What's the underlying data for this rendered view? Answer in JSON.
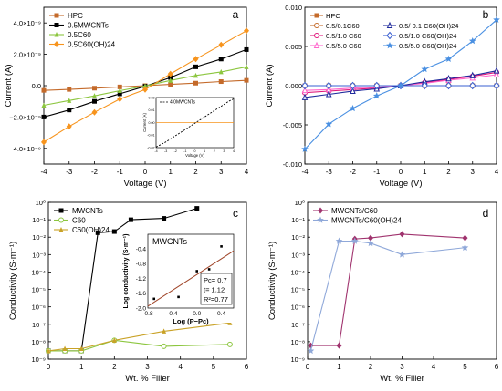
{
  "chart_data": [
    {
      "panel": "a",
      "type": "line",
      "xlabel": "Voltage (V)",
      "ylabel": "Current (A)",
      "xlim": [
        -4,
        4
      ],
      "ylim": [
        -5e-09,
        5e-09
      ],
      "x_ticks": [
        "-4",
        "-3",
        "-2",
        "-1",
        "0",
        "1",
        "2",
        "3",
        "4"
      ],
      "y_ticks": [
        {
          "v": 4e-09,
          "label": "4.0×10⁻⁹"
        },
        {
          "v": 2e-09,
          "label": "2.0×10⁻⁹"
        },
        {
          "v": 0,
          "label": "0.0"
        },
        {
          "v": -2e-09,
          "label": "−2.0×10⁻⁹"
        },
        {
          "v": -4e-09,
          "label": "−4.0×10⁻⁹"
        }
      ],
      "legend_position": "top-left",
      "series": [
        {
          "name": "HPC",
          "color": "#c46a2a",
          "marker": "square",
          "x": [
            -4,
            -3,
            -2,
            -1,
            0,
            1,
            2,
            3,
            4
          ],
          "y": [
            -3e-10,
            -2.4e-10,
            -1.6e-10,
            -8e-11,
            0,
            8e-11,
            1.6e-10,
            2.6e-10,
            3.4e-10
          ]
        },
        {
          "name": "0.5MWCNTs",
          "color": "#000000",
          "marker": "square",
          "x": [
            -4,
            -3,
            -2,
            -1,
            0,
            1,
            2,
            3,
            4
          ],
          "y": [
            -2e-09,
            -1.55e-09,
            -1e-09,
            -5.2e-10,
            -4e-11,
            5.2e-10,
            1.2e-09,
            1.7e-09,
            2.3e-09
          ]
        },
        {
          "name": "0.5C60",
          "color": "#8cc63f",
          "marker": "triangle",
          "x": [
            -4,
            -3,
            -2,
            -1,
            0,
            1,
            2,
            3,
            4
          ],
          "y": [
            -1.25e-09,
            -9.5e-10,
            -6.5e-10,
            -3.2e-10,
            -2e-11,
            3.3e-10,
            6.5e-10,
            8.8e-10,
            1.2e-09
          ]
        },
        {
          "name": "0.5C60(OH)24",
          "color": "#f7941d",
          "marker": "diamond",
          "x": [
            -4,
            -3,
            -2,
            -1,
            0,
            1,
            2,
            3,
            4
          ],
          "y": [
            -3.6e-09,
            -2.6e-09,
            -1.7e-09,
            -8.5e-10,
            -2.5e-10,
            7.5e-10,
            1.7e-09,
            2.6e-09,
            3.5e-09
          ]
        }
      ],
      "inset": {
        "legend": "4.0MWCNTs",
        "xlabel": "Voltage (V)",
        "ylabel": "Current (A)",
        "xlim": [
          -4,
          4
        ],
        "ylim": [
          -0.02,
          0.02
        ],
        "x_ticks": [
          "-4",
          "-3",
          "-2",
          "-1",
          "0",
          "1",
          "2",
          "3",
          "4"
        ],
        "y_ticks": [
          {
            "v": 0.02,
            "label": "0.02"
          },
          {
            "v": 0.01,
            "label": "0.01"
          },
          {
            "v": 0,
            "label": "0.00"
          },
          {
            "v": -0.01,
            "label": "-0.01"
          },
          {
            "v": -0.02,
            "label": "-0.02"
          }
        ],
        "x": [
          -4,
          -3.5,
          -3,
          -2.5,
          -2,
          -1.5,
          -1,
          -0.5,
          0,
          0.5,
          1,
          1.5,
          2,
          2.5,
          3,
          3.5,
          4
        ],
        "y": [
          -0.0195,
          -0.0175,
          -0.0155,
          -0.013,
          -0.0105,
          -0.008,
          -0.0055,
          -0.003,
          -0.0005,
          0.002,
          0.0045,
          0.007,
          0.0095,
          0.012,
          0.0145,
          0.017,
          0.019
        ],
        "reference_line": 0
      }
    },
    {
      "panel": "b",
      "type": "line",
      "xlabel": "Voltage (V)",
      "ylabel": "Current (A)",
      "xlim": [
        -4,
        4
      ],
      "ylim": [
        -0.01,
        0.01
      ],
      "x_ticks": [
        "-4",
        "-3",
        "-2",
        "-1",
        "0",
        "1",
        "2",
        "3",
        "4"
      ],
      "y_ticks": [
        {
          "v": 0.01,
          "label": "0.010"
        },
        {
          "v": 0.005,
          "label": "0.005"
        },
        {
          "v": 0,
          "label": "0.000"
        },
        {
          "v": -0.005,
          "label": "-0.005"
        },
        {
          "v": -0.01,
          "label": "-0.010"
        }
      ],
      "legend_position": "top-left",
      "series": [
        {
          "name": "HPC",
          "color": "#c46a2a",
          "marker": "square",
          "x": [
            -4,
            -3,
            -2,
            -1,
            0,
            1,
            2,
            3,
            4
          ],
          "y": [
            0,
            0,
            0,
            0,
            0,
            0,
            0,
            0,
            0
          ]
        },
        {
          "name": "0.5/0.1C60",
          "color": "#c46a2a",
          "marker": "open-circle",
          "x": [
            -4,
            -3,
            -2,
            -1,
            0,
            1,
            2,
            3,
            4
          ],
          "y": [
            0,
            0,
            0,
            0,
            0,
            0,
            0,
            0,
            0
          ]
        },
        {
          "name": "0.5/1.0 C60",
          "color": "#e0177a",
          "marker": "open-circle",
          "x": [
            -4,
            -3,
            -2,
            -1,
            0,
            1,
            2,
            3,
            4
          ],
          "y": [
            -0.0009,
            -0.0007,
            -0.0005,
            -0.0003,
            0,
            0.0004,
            0.0008,
            0.0012,
            0.0017
          ]
        },
        {
          "name": "0.5/5.0 C60",
          "color": "#ff66cc",
          "marker": "open-triangle",
          "x": [
            -4,
            -3,
            -2,
            -1,
            0,
            1,
            2,
            3,
            4
          ],
          "y": [
            -0.0006,
            -0.0005,
            -0.0003,
            -0.0002,
            0,
            0.0003,
            0.0007,
            0.001,
            0.0014
          ]
        },
        {
          "name": "0.5/ 0.1 C60(OH)24",
          "color": "#1f2a9c",
          "marker": "open-triangle",
          "x": [
            -4,
            -3,
            -2,
            -1,
            0,
            1,
            2,
            3,
            4
          ],
          "y": [
            -0.0015,
            -0.0011,
            -0.0007,
            -0.0004,
            0,
            0.0005,
            0.0009,
            0.0013,
            0.0019
          ]
        },
        {
          "name": "0.5/1.0 C60(OH)24",
          "color": "#3a5fd0",
          "marker": "open-diamond",
          "x": [
            -4,
            -3,
            -2,
            -1,
            0,
            1,
            2,
            3,
            4
          ],
          "y": [
            0,
            0,
            0,
            0,
            0,
            0,
            0,
            0,
            0
          ]
        },
        {
          "name": "0.5/5.0 C60(OH)24",
          "color": "#4a90e2",
          "marker": "star",
          "x": [
            -4,
            -3,
            -2,
            -1,
            0,
            1,
            2,
            3,
            4
          ],
          "y": [
            -0.0081,
            -0.0049,
            -0.0029,
            -0.0013,
            0,
            0.0021,
            0.0034,
            0.0057,
            0.0084
          ]
        }
      ]
    },
    {
      "panel": "c",
      "type": "line",
      "xlabel": "Wt. % Filler",
      "ylabel": "Conductivity (S·m⁻¹)",
      "xlim": [
        0,
        6
      ],
      "ylim_log10": [
        -9,
        0
      ],
      "log_y": true,
      "x_ticks": [
        "0",
        "1",
        "2",
        "3",
        "4",
        "5",
        "6"
      ],
      "y_ticks": [
        {
          "p": 0,
          "label": "10⁰"
        },
        {
          "p": -1,
          "label": "10⁻¹"
        },
        {
          "p": -2,
          "label": "10⁻²"
        },
        {
          "p": -3,
          "label": "10⁻³"
        },
        {
          "p": -4,
          "label": "10⁻⁴"
        },
        {
          "p": -5,
          "label": "10⁻⁵"
        },
        {
          "p": -6,
          "label": "10⁻⁶"
        },
        {
          "p": -7,
          "label": "10⁻⁷"
        },
        {
          "p": -8,
          "label": "10⁻⁸"
        },
        {
          "p": -9,
          "label": "10⁻⁹"
        }
      ],
      "legend_position": "top-left",
      "series": [
        {
          "name": "MWCNTs",
          "color": "#000000",
          "marker": "square",
          "x": [
            0,
            0.5,
            1,
            1.5,
            2,
            2.5,
            3.5,
            4.5
          ],
          "y": [
            3e-09,
            3e-09,
            3e-09,
            0.018,
            0.021,
            0.1,
            0.12,
            0.45
          ]
        },
        {
          "name": "C60",
          "color": "#8cc63f",
          "marker": "open-circle",
          "x": [
            0,
            0.5,
            1,
            2,
            3.5,
            5.5
          ],
          "y": [
            3e-09,
            3e-09,
            3e-09,
            1.2e-08,
            5.5e-09,
            7e-09
          ]
        },
        {
          "name": "C60(OH)24",
          "color": "#c9a227",
          "marker": "triangle",
          "x": [
            0,
            0.5,
            1,
            2,
            3.5,
            5.5
          ],
          "y": [
            3e-09,
            4e-09,
            4e-09,
            1.2e-08,
            4e-08,
            1.2e-07
          ]
        }
      ],
      "inset": {
        "title": "MWCNTs",
        "xlabel": "Log (P−Pc)",
        "ylabel": "Log conductivity (S·m⁻¹)",
        "xlim": [
          -0.8,
          0.6
        ],
        "ylim": [
          -2.0,
          0.0
        ],
        "x_ticks": [
          {
            "v": -0.8,
            "label": "-0.8"
          },
          {
            "v": -0.4,
            "label": "-0.4"
          },
          {
            "v": 0.0,
            "label": "0.0"
          },
          {
            "v": 0.4,
            "label": "0.4"
          }
        ],
        "y_ticks": [
          {
            "v": -0.4,
            "label": "-0.4"
          },
          {
            "v": -0.8,
            "label": "-0.8"
          },
          {
            "v": -1.2,
            "label": "-1.2"
          },
          {
            "v": -1.6,
            "label": "-1.6"
          },
          {
            "v": -2.0,
            "label": "-2.0"
          }
        ],
        "points": {
          "x": [
            -0.7,
            -0.3,
            0.0,
            0.2,
            0.4
          ],
          "y": [
            -1.75,
            -1.7,
            -1.0,
            -0.95,
            -0.33
          ]
        },
        "fit_line": {
          "x": [
            -0.8,
            0.6
          ],
          "y": [
            -1.95,
            -0.45
          ]
        },
        "annotations": [
          "Pc= 0.7",
          "t= 1.12",
          "R²=0.77"
        ]
      }
    },
    {
      "panel": "d",
      "type": "line",
      "xlabel": "Wt. % Filler",
      "ylabel": "Conductivity (S·m⁻¹)",
      "xlim": [
        0,
        6
      ],
      "ylim_log10": [
        -9,
        0
      ],
      "log_y": true,
      "x_ticks": [
        "0",
        "1",
        "2",
        "3",
        "4",
        "5",
        "6"
      ],
      "y_ticks": [
        {
          "p": 0,
          "label": "10⁰"
        },
        {
          "p": -1,
          "label": "10⁻¹"
        },
        {
          "p": -2,
          "label": "10⁻²"
        },
        {
          "p": -3,
          "label": "10⁻³"
        },
        {
          "p": -4,
          "label": "10⁻⁴"
        },
        {
          "p": -5,
          "label": "10⁻⁵"
        },
        {
          "p": -6,
          "label": "10⁻⁶"
        },
        {
          "p": -7,
          "label": "10⁻⁷"
        },
        {
          "p": -8,
          "label": "10⁻⁸"
        },
        {
          "p": -9,
          "label": "10⁻⁹"
        }
      ],
      "legend_position": "top-left",
      "series": [
        {
          "name": "MWCNTs/C60",
          "color": "#a0336e",
          "marker": "diamond",
          "x": [
            0.1,
            1,
            1.5,
            2,
            3,
            5
          ],
          "y": [
            6e-09,
            6e-09,
            0.008,
            0.009,
            0.015,
            0.009
          ]
        },
        {
          "name": "MWCNTs/C60(OH)24",
          "color": "#8fa8d9",
          "marker": "star",
          "x": [
            0.1,
            1,
            1.5,
            2,
            3,
            5
          ],
          "y": [
            3e-09,
            0.006,
            0.006,
            0.0045,
            0.001,
            0.0025
          ]
        }
      ]
    }
  ]
}
